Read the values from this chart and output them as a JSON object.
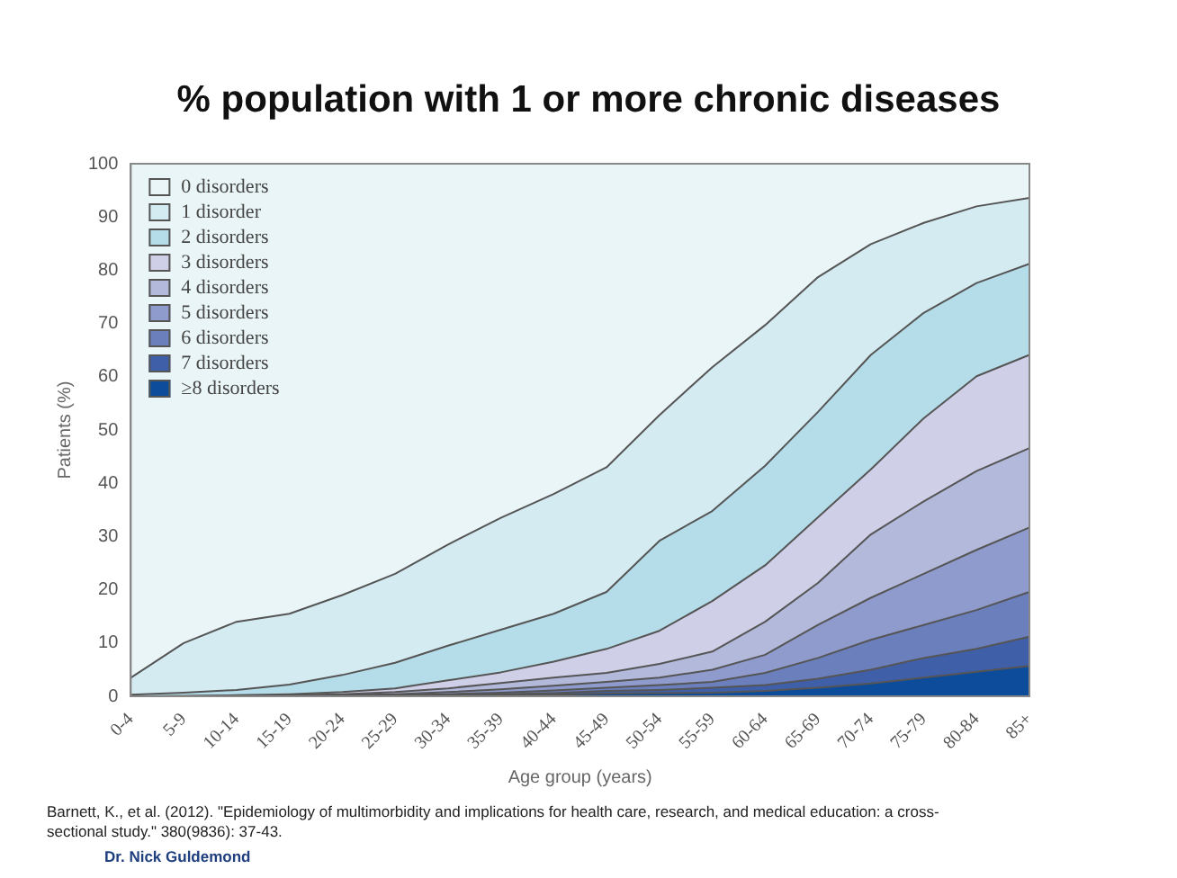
{
  "chart_data": {
    "type": "area",
    "stacked": true,
    "title": "% population with 1 or more chronic diseases",
    "xlabel": "Age group (years)",
    "ylabel": "Patients (%)",
    "categories": [
      "0-4",
      "5-9",
      "10-14",
      "15-19",
      "20-24",
      "25-29",
      "30-34",
      "35-39",
      "40-44",
      "45-49",
      "50-54",
      "55-59",
      "60-64",
      "65-69",
      "70-74",
      "75-79",
      "80-84",
      "85+"
    ],
    "ylim": [
      0,
      100
    ],
    "yticks": [
      0,
      10,
      20,
      30,
      40,
      50,
      60,
      70,
      80,
      90,
      100
    ],
    "grid": false,
    "legend": "top left",
    "marker": "none",
    "series": [
      {
        "name": "≥8 disorders",
        "color": "#0d4c9a",
        "values": [
          0,
          0,
          0,
          0,
          0,
          0,
          0.1,
          0.2,
          0.3,
          0.5,
          0.6,
          0.7,
          1,
          1.6,
          2.4,
          3.5,
          4.6,
          5.7
        ]
      },
      {
        "name": "7 disorders",
        "color": "#3f5fa8",
        "values": [
          0,
          0,
          0,
          0,
          0,
          0.1,
          0.1,
          0.2,
          0.3,
          0.5,
          0.6,
          0.9,
          1.1,
          1.7,
          2.6,
          3.7,
          4.3,
          5.5
        ]
      },
      {
        "name": "6 disorders",
        "color": "#6b7fbd",
        "values": [
          0,
          0,
          0,
          0,
          0.1,
          0.1,
          0.2,
          0.3,
          0.5,
          0.6,
          0.9,
          1.1,
          2.3,
          3.9,
          5.6,
          6.2,
          7.3,
          8.4
        ]
      },
      {
        "name": "5 disorders",
        "color": "#8f9bcc",
        "values": [
          0,
          0,
          0,
          0.1,
          0.1,
          0.2,
          0.4,
          0.6,
          0.9,
          1.1,
          1.4,
          2.3,
          3.4,
          6.2,
          7.9,
          9.6,
          11.3,
          12.1
        ]
      },
      {
        "name": "4 disorders",
        "color": "#b3b9da",
        "values": [
          0,
          0,
          0.1,
          0.1,
          0.2,
          0.4,
          0.7,
          1.2,
          1.5,
          1.7,
          2.6,
          3.4,
          6.2,
          7.9,
          11.9,
          13.6,
          14.8,
          14.9
        ]
      },
      {
        "name": "3 disorders",
        "color": "#cfcfe8",
        "values": [
          0,
          0.1,
          0.1,
          0.2,
          0.4,
          0.7,
          1.5,
          2,
          3,
          4.5,
          6.2,
          9.5,
          10.6,
          12.3,
          12.2,
          15.6,
          17.8,
          17.5
        ]
      },
      {
        "name": "2 disorders",
        "color": "#b5dde9",
        "values": [
          0.3,
          0.6,
          1,
          1.8,
          3.2,
          4.8,
          6.5,
          8,
          9,
          10.7,
          16.9,
          16.9,
          18.7,
          19.8,
          21.5,
          19.8,
          17.5,
          17.1
        ]
      },
      {
        "name": "1 disorder",
        "color": "#d4ebf2",
        "values": [
          3.2,
          9.3,
          12.8,
          13.3,
          15,
          16.7,
          19,
          21,
          22.5,
          23.4,
          23.6,
          27,
          26.4,
          25.3,
          20.8,
          16.9,
          14.4,
          12.4
        ]
      },
      {
        "name": "0 disorders",
        "color": "#eaf5f7",
        "values": [
          96.5,
          90,
          86,
          84.5,
          81,
          77,
          71.5,
          66.5,
          62,
          57,
          47.2,
          38.2,
          30.3,
          21.3,
          15.1,
          11.1,
          8,
          6.4
        ]
      }
    ],
    "annotations": [
      "Barnett, K., et al. (2012). \"Epidemiology of multimorbidity and implications for health care, research, and medical education: a cross-sectional study.\" 380(9836): 37-43.",
      "Dr. Nick Guldemond"
    ]
  }
}
